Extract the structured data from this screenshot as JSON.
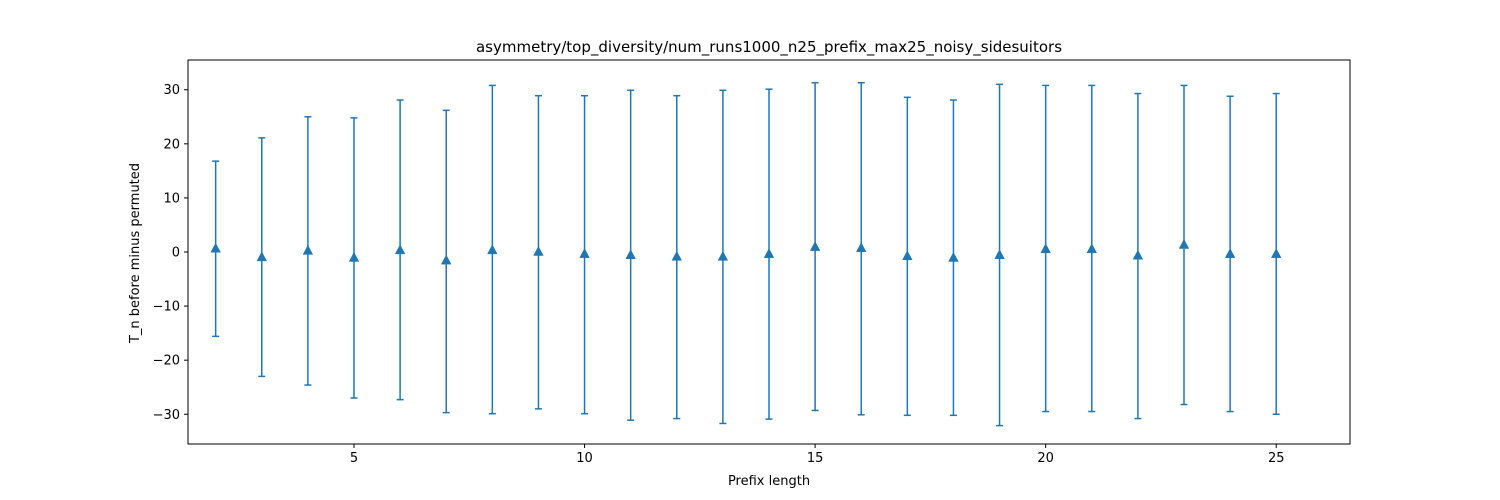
{
  "chart_data": {
    "type": "errorbar",
    "title": "asymmetry/top_diversity/num_runs1000_n25_prefix_max25_noisy_sidesuitors",
    "xlabel": "Prefix length",
    "ylabel": "T_n before minus permuted",
    "xlim": [
      1.4,
      26.6
    ],
    "ylim": [
      -35.5,
      35.5
    ],
    "xticks": [
      5,
      10,
      15,
      20,
      25
    ],
    "yticks": [
      -30,
      -20,
      -10,
      0,
      10,
      20,
      30
    ],
    "grid": false,
    "marker": "triangle-up",
    "color": "#1f77b4",
    "series": [
      {
        "x": [
          2,
          3,
          4,
          5,
          6,
          7,
          8,
          9,
          10,
          11,
          12,
          13,
          14,
          15,
          16,
          17,
          18,
          19,
          20,
          21,
          22,
          23,
          24,
          25
        ],
        "y": [
          0.6,
          -1.0,
          0.2,
          -1.1,
          0.3,
          -1.6,
          0.3,
          0.0,
          -0.4,
          -0.6,
          -0.9,
          -0.9,
          -0.4,
          0.9,
          0.7,
          -0.8,
          -1.1,
          -0.6,
          0.5,
          0.5,
          -0.7,
          1.3,
          -0.4,
          -0.4
        ],
        "upper": [
          16.8,
          21.1,
          25.0,
          24.8,
          28.1,
          26.2,
          30.8,
          28.9,
          28.9,
          29.9,
          28.9,
          29.9,
          30.1,
          31.3,
          31.3,
          28.6,
          28.1,
          31.0,
          30.8,
          30.8,
          29.3,
          30.8,
          28.8,
          29.3
        ],
        "lower": [
          -15.6,
          -23.0,
          -24.6,
          -27.0,
          -27.3,
          -29.7,
          -29.9,
          -29.0,
          -29.9,
          -31.1,
          -30.8,
          -31.7,
          -30.9,
          -29.3,
          -30.1,
          -30.2,
          -30.2,
          -32.1,
          -29.5,
          -29.5,
          -30.8,
          -28.2,
          -29.5,
          -30.0
        ]
      }
    ]
  }
}
